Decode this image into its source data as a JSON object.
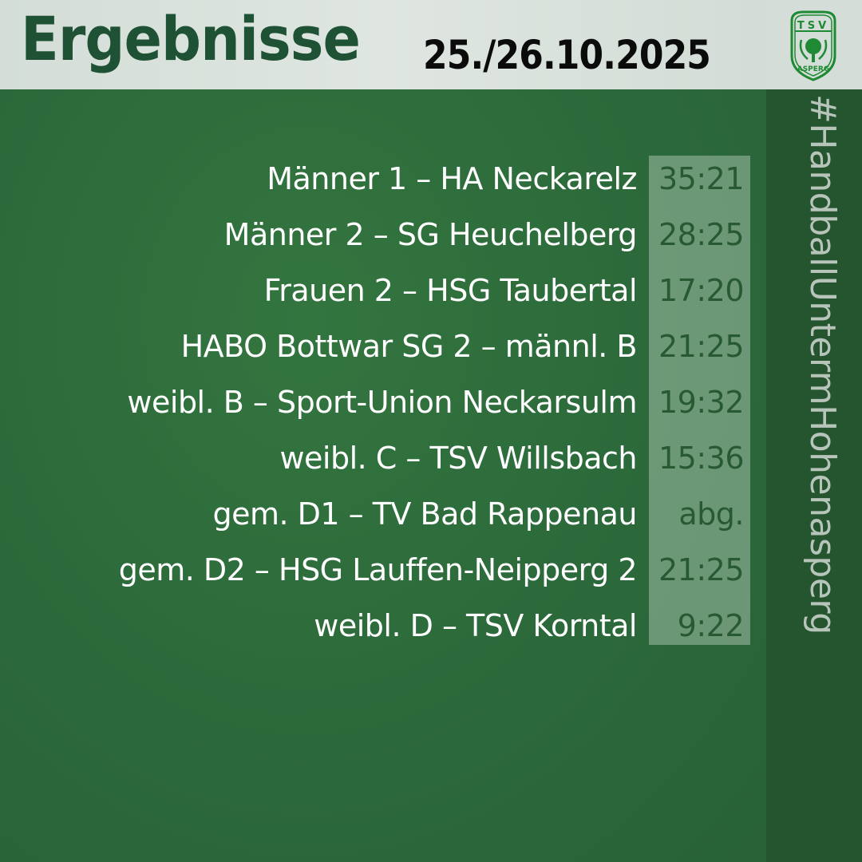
{
  "header": {
    "title": "Ergebnisse",
    "date": "25./26.10.2025"
  },
  "logo": {
    "text_top": "TSV",
    "text_bottom": "ASPERG"
  },
  "hashtag": "#HandballUntermHohenasperg",
  "colors": {
    "green": "#2d6c3d",
    "dark_green": "#1f5235",
    "header_bg": "#d5ddd8",
    "score_text": "#275a33"
  },
  "results": [
    {
      "match": "Männer 1 – HA Neckarelz",
      "score": "35:21"
    },
    {
      "match": "Männer 2 – SG Heuchelberg",
      "score": "28:25"
    },
    {
      "match": "Frauen 2 – HSG  Taubertal",
      "score": "17:20"
    },
    {
      "match": "HABO Bottwar SG 2 – männl. B",
      "score": "21:25"
    },
    {
      "match": "weibl. B – Sport-Union Neckarsulm",
      "score": "19:32"
    },
    {
      "match": "weibl. C – TSV Willsbach",
      "score": "15:36"
    },
    {
      "match": "gem. D1 – TV Bad Rappenau",
      "score": "abg."
    },
    {
      "match": "gem. D2 – HSG Lauffen-Neipperg 2",
      "score": "21:25"
    },
    {
      "match": "weibl. D – TSV Korntal",
      "score": "9:22"
    }
  ]
}
